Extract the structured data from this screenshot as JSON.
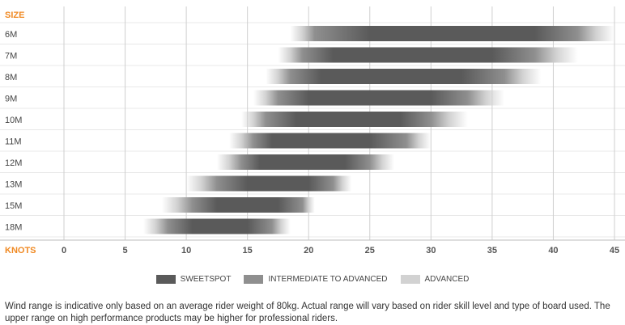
{
  "chart_data": {
    "type": "bar",
    "y_axis_title": "SIZE",
    "x_axis_title": "KNOTS",
    "xlim": [
      0,
      45
    ],
    "x_ticks": [
      0,
      5,
      10,
      15,
      20,
      25,
      30,
      35,
      40,
      45
    ],
    "grid": true,
    "legend_placement": "bottom",
    "colors": {
      "sweetspot": "#5a5a5a",
      "intermediate": "#8f8f8f",
      "advanced": "#d2d2d2",
      "axis_title": "#f08a24"
    },
    "series": [
      {
        "size": "6M",
        "advanced_start": 18.5,
        "intermediate_start": 20.5,
        "sweetspot": [
          25,
          38.5
        ],
        "intermediate_end": 42,
        "advanced_end": 45
      },
      {
        "size": "7M",
        "advanced_start": 17.5,
        "intermediate_start": 19.5,
        "sweetspot": [
          22,
          35
        ],
        "intermediate_end": 38.5,
        "advanced_end": 42
      },
      {
        "size": "8M",
        "advanced_start": 16.5,
        "intermediate_start": 18.5,
        "sweetspot": [
          21,
          32.5
        ],
        "intermediate_end": 36,
        "advanced_end": 39
      },
      {
        "size": "9M",
        "advanced_start": 15.5,
        "intermediate_start": 17.5,
        "sweetspot": [
          20,
          30
        ],
        "intermediate_end": 33,
        "advanced_end": 36
      },
      {
        "size": "10M",
        "advanced_start": 14.5,
        "intermediate_start": 16.5,
        "sweetspot": [
          19,
          27.5
        ],
        "intermediate_end": 30,
        "advanced_end": 33
      },
      {
        "size": "11M",
        "advanced_start": 13.5,
        "intermediate_start": 15.5,
        "sweetspot": [
          17,
          25
        ],
        "intermediate_end": 28,
        "advanced_end": 30
      },
      {
        "size": "12M",
        "advanced_start": 12.5,
        "intermediate_start": 14.5,
        "sweetspot": [
          16,
          23
        ],
        "intermediate_end": 25,
        "advanced_end": 27
      },
      {
        "size": "13M",
        "advanced_start": 10,
        "intermediate_start": 12.5,
        "sweetspot": [
          15,
          20
        ],
        "intermediate_end": 22,
        "advanced_end": 23.5
      },
      {
        "size": "15M",
        "advanced_start": 8,
        "intermediate_start": 10.5,
        "sweetspot": [
          12.5,
          17.5
        ],
        "intermediate_end": 19.5,
        "advanced_end": 20.5
      },
      {
        "size": "18M",
        "advanced_start": 6.5,
        "intermediate_start": 8.5,
        "sweetspot": [
          10.5,
          15
        ],
        "intermediate_end": 17,
        "advanced_end": 18.5
      }
    ]
  },
  "legend": {
    "sweetspot": "SWEETSPOT",
    "intermediate": "INTERMEDIATE TO ADVANCED",
    "advanced": "ADVANCED"
  },
  "note": "Wind range is indicative only based on an average rider weight of 80kg. Actual range will vary based on rider skill level and type of board used. The upper range on high performance products may be higher for professional riders."
}
